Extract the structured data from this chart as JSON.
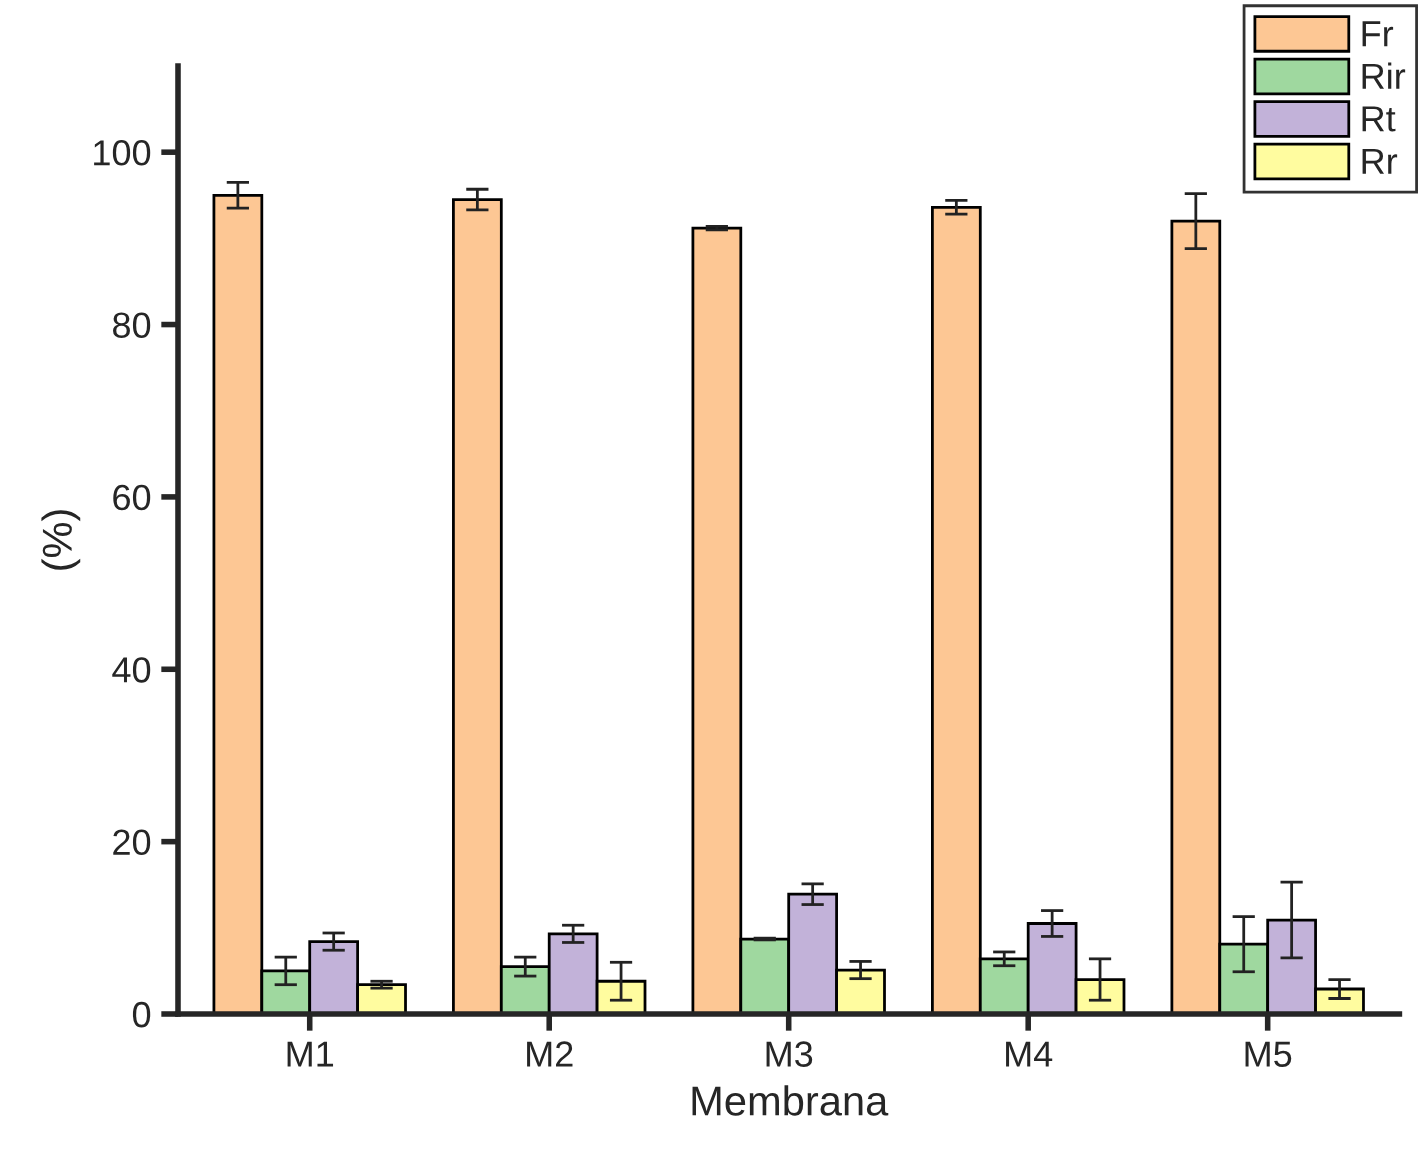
{
  "chart_data": {
    "type": "bar",
    "xlabel": "Membrana",
    "ylabel": "(%)",
    "categories": [
      "M1",
      "M2",
      "M3",
      "M4",
      "M5"
    ],
    "series": [
      {
        "name": "Fr",
        "color": "#fdc794",
        "values": [
          95,
          94.5,
          91.2,
          93.6,
          92
        ],
        "errors": [
          1.5,
          1.2,
          0.2,
          0.8,
          3.2
        ]
      },
      {
        "name": "Rir",
        "color": "#9fd89f",
        "values": [
          5,
          5.5,
          8.7,
          6.4,
          8.1
        ],
        "errors": [
          1.6,
          1.1,
          0.1,
          0.8,
          3.2
        ]
      },
      {
        "name": "Rt",
        "color": "#c2b2d9",
        "values": [
          8.4,
          9.3,
          13.9,
          10.5,
          10.9
        ],
        "errors": [
          1.0,
          1.0,
          1.2,
          1.5,
          4.4
        ]
      },
      {
        "name": "Rr",
        "color": "#fffc9f",
        "values": [
          3.4,
          3.8,
          5.1,
          4.0,
          2.9
        ],
        "errors": [
          0.4,
          2.2,
          1.0,
          2.4,
          1.1
        ]
      }
    ],
    "ylim": [
      0,
      110
    ],
    "yticks": [
      0,
      20,
      40,
      60,
      80,
      100
    ],
    "grid": false,
    "legend": "top right"
  }
}
